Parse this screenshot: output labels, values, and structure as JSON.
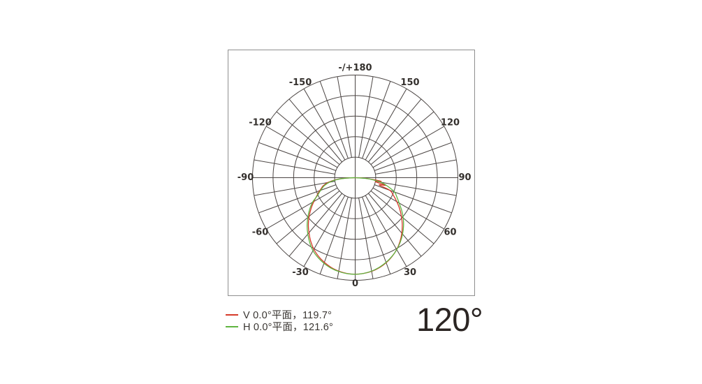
{
  "page": {
    "background": "#ffffff",
    "plot_border_color": "#8f8f8f"
  },
  "beam_angle_label": "120°",
  "legend": {
    "items": [
      {
        "label": "V 0.0°平面，119.7°",
        "color": "#d63a2a"
      },
      {
        "label": "H 0.0°平面，121.6°",
        "color": "#5fb440"
      }
    ]
  },
  "chart_data": {
    "type": "line",
    "polar": true,
    "title": "",
    "angle_axis": {
      "unit": "deg",
      "zero_position": "bottom",
      "labels": [
        {
          "angle": 180,
          "text": "-/+180"
        },
        {
          "angle": 150,
          "text": "150"
        },
        {
          "angle": 120,
          "text": "120"
        },
        {
          "angle": 90,
          "text": "90"
        },
        {
          "angle": 60,
          "text": "60"
        },
        {
          "angle": 30,
          "text": "30"
        },
        {
          "angle": 0,
          "text": "0"
        },
        {
          "angle": -30,
          "text": "-30"
        },
        {
          "angle": -60,
          "text": "-60"
        },
        {
          "angle": -90,
          "text": "-90"
        },
        {
          "angle": -120,
          "text": "-120"
        },
        {
          "angle": -150,
          "text": "-150"
        }
      ]
    },
    "r_axis": {
      "min": 0,
      "max": 1,
      "rings": 5
    },
    "grid": {
      "radial_step_deg": 10,
      "color": "#4b4543"
    },
    "series": [
      {
        "name": "V 0.0°平面",
        "beam_angle_deg": 119.7,
        "color": "#d63a2a",
        "points": [
          [
            -90,
            0
          ],
          [
            -87,
            0.105
          ],
          [
            -84,
            0.19
          ],
          [
            -80,
            0.27
          ],
          [
            -76,
            0.32
          ],
          [
            -72,
            0.35
          ],
          [
            -68,
            0.385
          ],
          [
            -64,
            0.42
          ],
          [
            -60,
            0.465
          ],
          [
            -55,
            0.525
          ],
          [
            -50,
            0.585
          ],
          [
            -45,
            0.645
          ],
          [
            -40,
            0.7
          ],
          [
            -35,
            0.755
          ],
          [
            -30,
            0.805
          ],
          [
            -25,
            0.845
          ],
          [
            -20,
            0.878
          ],
          [
            -15,
            0.905
          ],
          [
            -10,
            0.924
          ],
          [
            -5,
            0.936
          ],
          [
            0,
            0.94
          ],
          [
            5,
            0.936
          ],
          [
            10,
            0.926
          ],
          [
            15,
            0.908
          ],
          [
            20,
            0.882
          ],
          [
            25,
            0.848
          ],
          [
            30,
            0.808
          ],
          [
            35,
            0.76
          ],
          [
            40,
            0.706
          ],
          [
            45,
            0.648
          ],
          [
            50,
            0.588
          ],
          [
            55,
            0.528
          ],
          [
            60,
            0.468
          ],
          [
            65,
            0.412
          ],
          [
            70,
            0.358
          ],
          [
            73,
            0.245
          ],
          [
            76,
            0.305
          ],
          [
            79,
            0.2
          ],
          [
            82,
            0.255
          ],
          [
            85,
            0.145
          ],
          [
            88,
            0.07
          ],
          [
            90,
            0
          ]
        ]
      },
      {
        "name": "H 0.0°平面",
        "beam_angle_deg": 121.6,
        "color": "#5fb440",
        "points": [
          [
            -90,
            0
          ],
          [
            -87,
            0.1
          ],
          [
            -84,
            0.18
          ],
          [
            -80,
            0.255
          ],
          [
            -76,
            0.305
          ],
          [
            -72,
            0.34
          ],
          [
            -68,
            0.375
          ],
          [
            -64,
            0.415
          ],
          [
            -60,
            0.48
          ],
          [
            -55,
            0.542
          ],
          [
            -50,
            0.602
          ],
          [
            -45,
            0.662
          ],
          [
            -40,
            0.718
          ],
          [
            -35,
            0.772
          ],
          [
            -30,
            0.822
          ],
          [
            -25,
            0.858
          ],
          [
            -20,
            0.888
          ],
          [
            -15,
            0.912
          ],
          [
            -10,
            0.928
          ],
          [
            -5,
            0.938
          ],
          [
            0,
            0.941
          ],
          [
            5,
            0.936
          ],
          [
            10,
            0.924
          ],
          [
            15,
            0.904
          ],
          [
            20,
            0.878
          ],
          [
            25,
            0.846
          ],
          [
            30,
            0.81
          ],
          [
            35,
            0.766
          ],
          [
            40,
            0.718
          ],
          [
            45,
            0.666
          ],
          [
            50,
            0.61
          ],
          [
            55,
            0.552
          ],
          [
            60,
            0.494
          ],
          [
            65,
            0.448
          ],
          [
            70,
            0.408
          ],
          [
            74,
            0.345
          ],
          [
            77,
            0.3
          ],
          [
            80,
            0.25
          ],
          [
            83,
            0.18
          ],
          [
            86,
            0.105
          ],
          [
            90,
            0
          ]
        ]
      }
    ]
  }
}
